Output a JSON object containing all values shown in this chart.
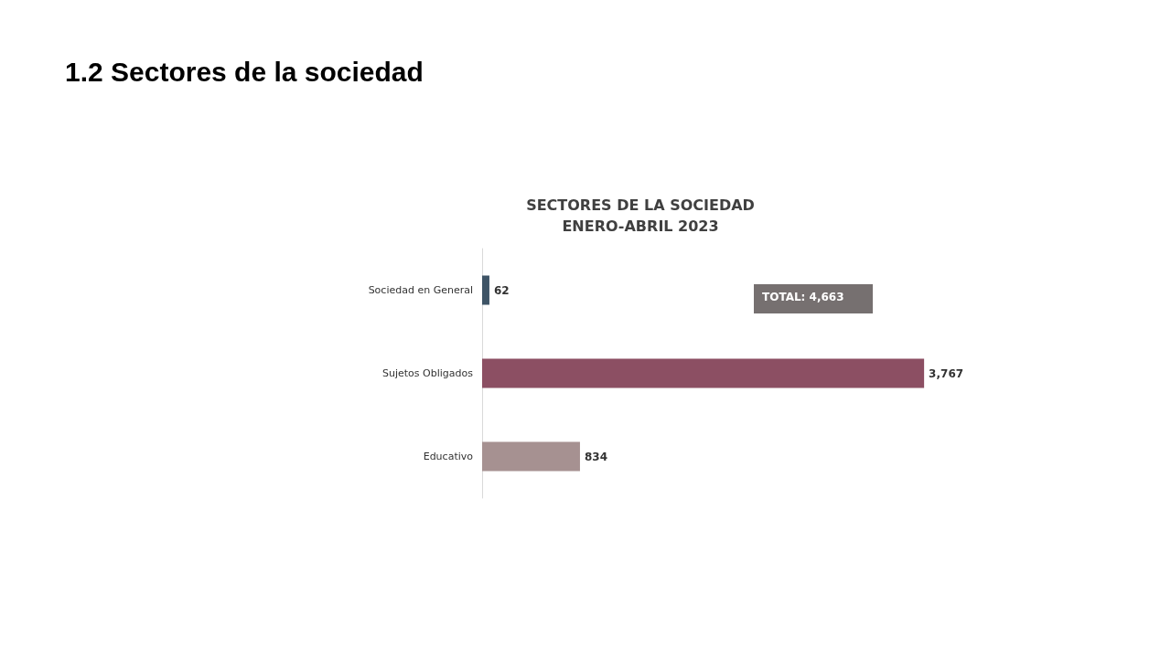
{
  "chart_data": {
    "type": "bar",
    "orientation": "horizontal",
    "title": "1.2 Sectores de la sociedad",
    "subtitle": "SECTORES DE LA SOCIEDAD\nENERO-ABRIL 2023",
    "categories": [
      "Sociedad en General",
      "Sujetos Obligados",
      "Educativo"
    ],
    "values": [
      62,
      3767,
      834
    ],
    "colors": [
      "#3e5466",
      "#8c4f63",
      "#a69191"
    ],
    "value_labels": [
      "62",
      "3,767",
      "834"
    ],
    "annotations": [
      "TOTAL: 4,663"
    ],
    "grid": false
  }
}
